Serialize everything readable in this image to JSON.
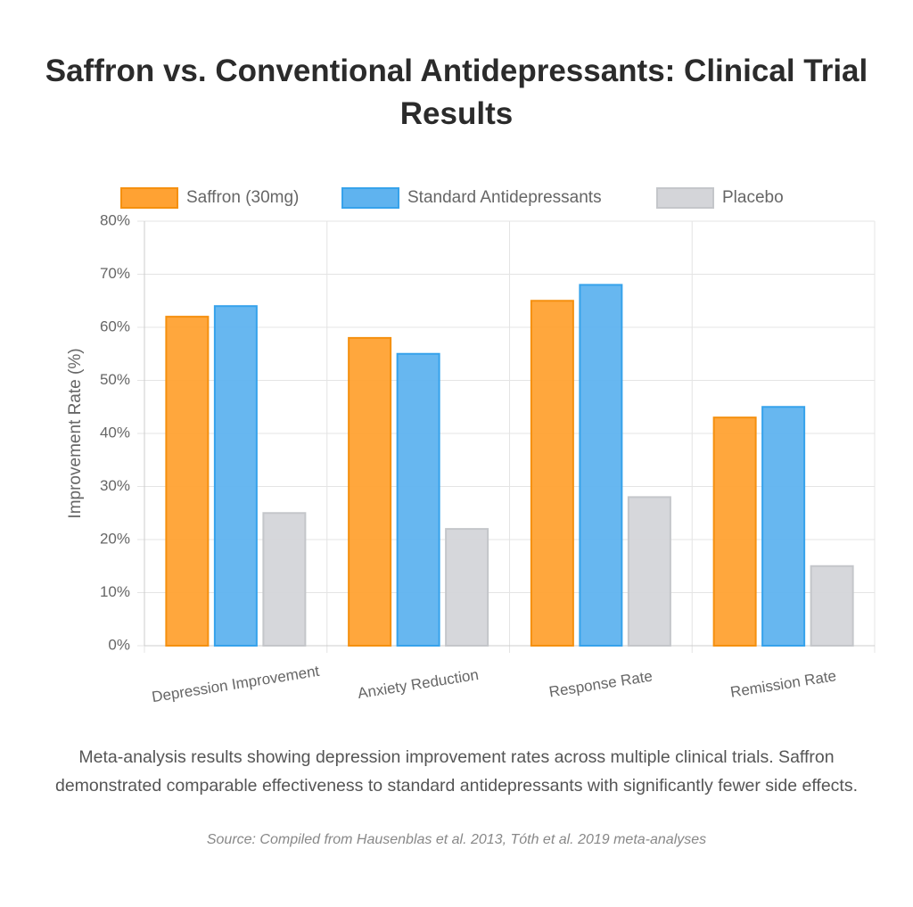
{
  "chart_data": {
    "type": "bar",
    "title": "Saffron vs. Conventional Antidepressants: Clinical Trial Results",
    "y_label": "Improvement Rate (%)",
    "categories": [
      "Depression Improvement",
      "Anxiety Reduction",
      "Response Rate",
      "Remission Rate"
    ],
    "series": [
      {
        "name": "Saffron (30mg)",
        "color": "#ffa233",
        "values": [
          62,
          58,
          65,
          43
        ]
      },
      {
        "name": "Standard Antidepressants",
        "color": "#5fb3ef",
        "values": [
          64,
          55,
          68,
          45
        ]
      },
      {
        "name": "Placebo",
        "color": "#d4d5d9",
        "values": [
          25,
          22,
          28,
          15
        ]
      }
    ],
    "ylim": [
      0,
      80
    ],
    "yticks": [
      {
        "value": 0,
        "label": "0%"
      },
      {
        "value": 10,
        "label": "10%"
      },
      {
        "value": 20,
        "label": "20%"
      },
      {
        "value": 30,
        "label": "30%"
      },
      {
        "value": 40,
        "label": "40%"
      },
      {
        "value": 50,
        "label": "50%"
      },
      {
        "value": 60,
        "label": "60%"
      },
      {
        "value": 70,
        "label": "70%"
      },
      {
        "value": 80,
        "label": "80%"
      }
    ],
    "grid": true,
    "legend": "top",
    "caption": "Meta-analysis results showing depression improvement rates across multiple clinical trials. Saffron demonstrated comparable effectiveness to standard antidepressants with significantly fewer side effects.",
    "source": "Source: Compiled from Hausenblas et al. 2013, Tóth et al. 2019 meta-analyses"
  }
}
